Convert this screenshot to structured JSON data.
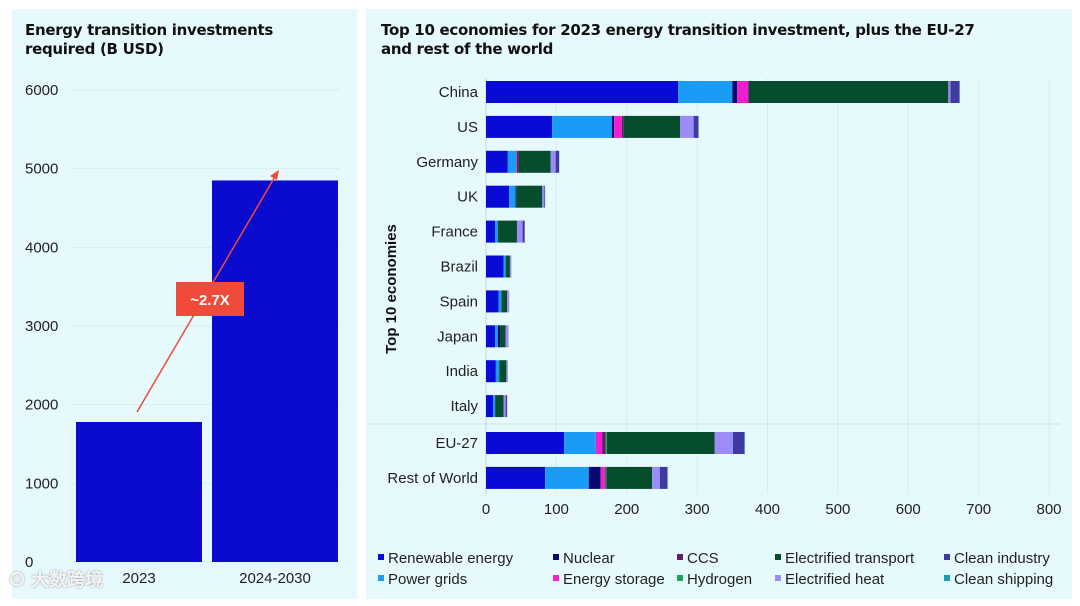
{
  "chart_data": [
    {
      "type": "bar",
      "title": "Energy transition investments required (B USD)",
      "categories": [
        "2023",
        "2024-2030"
      ],
      "values": [
        1780,
        4850
      ],
      "ylim": [
        0,
        6000
      ],
      "yticks": [
        "0",
        "1000",
        "2000",
        "3000",
        "4000",
        "5000",
        "6000"
      ],
      "annotation": "~2.7X",
      "bar_color": "#0b0bd0",
      "annotation_color": "#f04a3a",
      "grid": true
    },
    {
      "type": "bar",
      "orientation": "horizontal",
      "stacked": true,
      "title": "Top 10 economies for 2023 energy transition investment, plus the EU-27 and rest of the world",
      "ylabel": "Top 10 economies",
      "xlim": [
        0,
        800
      ],
      "xticks": [
        "0",
        "100",
        "200",
        "300",
        "400",
        "500",
        "600",
        "700",
        "800"
      ],
      "categories": [
        "China",
        "US",
        "Germany",
        "UK",
        "France",
        "Brazil",
        "Spain",
        "Japan",
        "India",
        "Italy",
        "EU-27",
        "Rest of World"
      ],
      "legend_position": "bottom",
      "series": [
        {
          "name": "Renewable energy",
          "color": "#0a0ad6",
          "values": [
            273,
            94,
            31,
            33,
            13,
            25,
            18,
            13,
            14,
            10,
            111,
            84
          ]
        },
        {
          "name": "Power grids",
          "color": "#1a9bf5",
          "values": [
            77,
            85,
            12,
            9,
            4,
            3,
            4,
            4,
            5,
            3,
            45,
            62
          ]
        },
        {
          "name": "Nuclear",
          "color": "#0a0a6e",
          "values": [
            7,
            3,
            0,
            1,
            0,
            0,
            0,
            3,
            0,
            0,
            0,
            17
          ]
        },
        {
          "name": "Energy storage",
          "color": "#f21fd0",
          "values": [
            16,
            11,
            1,
            0,
            0,
            0,
            0,
            0,
            0,
            0,
            9,
            6
          ]
        },
        {
          "name": "CCS",
          "color": "#6a1a6e",
          "values": [
            0,
            2,
            2,
            0,
            0,
            0,
            0,
            0,
            0,
            0,
            5,
            1
          ]
        },
        {
          "name": "Hydrogen",
          "color": "#1aa65a",
          "values": [
            0,
            0,
            0,
            0,
            0,
            0,
            0,
            0,
            0,
            0,
            2,
            1
          ]
        },
        {
          "name": "Electrified transport",
          "color": "#054d2c",
          "values": [
            284,
            81,
            46,
            37,
            27,
            6,
            8,
            8,
            10,
            12,
            153,
            65
          ]
        },
        {
          "name": "Electrified heat",
          "color": "#9b8cf7",
          "values": [
            3,
            19,
            7,
            3,
            8,
            2,
            3,
            4,
            2,
            3,
            26,
            11
          ]
        },
        {
          "name": "Clean industry",
          "color": "#3c3ca0",
          "values": [
            13,
            7,
            5,
            1,
            3,
            0,
            0,
            0,
            0,
            2,
            16,
            11
          ]
        },
        {
          "name": "Clean shipping",
          "color": "#1a9fb5",
          "values": [
            0,
            0,
            0,
            0,
            0,
            0,
            0,
            0,
            0,
            0,
            1,
            0
          ]
        }
      ],
      "legend_order": [
        "Renewable energy",
        "Nuclear",
        "CCS",
        "Electrified transport",
        "Clean industry",
        "Power grids",
        "Energy storage",
        "Hydrogen",
        "Electrified heat",
        "Clean shipping"
      ]
    }
  ],
  "watermark": "大数跨境"
}
